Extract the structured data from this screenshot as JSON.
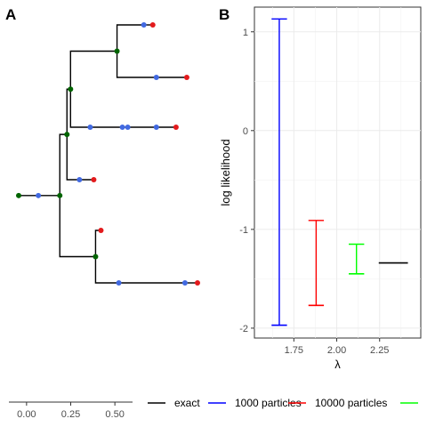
{
  "panels": {
    "a": "A",
    "b": "B"
  },
  "chart_data": [
    {
      "type": "tree",
      "panel": "A",
      "scale_ticks": [
        "0.00",
        "0.25",
        "0.50"
      ],
      "scale_range": [
        -0.1,
        0.6
      ],
      "colors": {
        "branch": "#000000",
        "internal": "#006400",
        "sampled": "#4169e1",
        "tip": "#e31a1c"
      },
      "nodes": [
        {
          "id": "root",
          "parent": null,
          "t": 0.0,
          "kind": "internal"
        },
        {
          "id": "s1",
          "parent": "root",
          "t": 0.11,
          "kind": "sampled"
        },
        {
          "id": "n1",
          "parent": "s1",
          "t": 0.23,
          "kind": "internal"
        },
        {
          "id": "n2",
          "parent": "n1",
          "t": 0.27,
          "kind": "internal"
        },
        {
          "id": "n3",
          "parent": "n2",
          "t": 0.29,
          "kind": "internal"
        },
        {
          "id": "n4",
          "parent": "n3",
          "t": 0.55,
          "kind": "internal"
        },
        {
          "id": "s2",
          "parent": "n4",
          "t": 0.7,
          "kind": "sampled"
        },
        {
          "id": "t1",
          "parent": "s2",
          "t": 0.75,
          "kind": "tip"
        },
        {
          "id": "s3",
          "parent": "n4",
          "t": 0.77,
          "kind": "sampled"
        },
        {
          "id": "t2",
          "parent": "s3",
          "t": 0.94,
          "kind": "tip"
        },
        {
          "id": "s4",
          "parent": "n3",
          "t": 0.4,
          "kind": "sampled"
        },
        {
          "id": "s5",
          "parent": "s4",
          "t": 0.58,
          "kind": "sampled"
        },
        {
          "id": "s6",
          "parent": "s5",
          "t": 0.61,
          "kind": "sampled"
        },
        {
          "id": "s7",
          "parent": "s6",
          "t": 0.77,
          "kind": "sampled"
        },
        {
          "id": "t3",
          "parent": "s7",
          "t": 0.88,
          "kind": "tip"
        },
        {
          "id": "s8",
          "parent": "n2",
          "t": 0.34,
          "kind": "sampled"
        },
        {
          "id": "t4",
          "parent": "s8",
          "t": 0.42,
          "kind": "tip"
        },
        {
          "id": "n5",
          "parent": "n1",
          "t": 0.43,
          "kind": "internal"
        },
        {
          "id": "t5",
          "parent": "n5",
          "t": 0.46,
          "kind": "tip"
        },
        {
          "id": "s9",
          "parent": "n5",
          "t": 0.56,
          "kind": "sampled"
        },
        {
          "id": "s10",
          "parent": "s9",
          "t": 0.93,
          "kind": "sampled"
        },
        {
          "id": "t6",
          "parent": "s10",
          "t": 1.0,
          "kind": "tip"
        }
      ],
      "tip_order": [
        "t1",
        "t2",
        "t3",
        "t4",
        "t5",
        "t6"
      ]
    },
    {
      "type": "errorbar",
      "panel": "B",
      "title": "",
      "xlabel": "λ",
      "ylabel": "log likelihood",
      "xlim": [
        1.52,
        2.49
      ],
      "ylim": [
        -2.1,
        1.25
      ],
      "xticks": [
        "1.75",
        "2.00",
        "2.25"
      ],
      "yticks": [
        "1",
        "0",
        "-1",
        "-2"
      ],
      "grid": true,
      "series": [
        {
          "name": "1000 particles",
          "color": "#0000ff",
          "x": 1.665,
          "low": -1.97,
          "high": 1.13,
          "cap_half": 0.045
        },
        {
          "name": "10000 particles",
          "color": "#ff0000",
          "x": 1.88,
          "low": -1.77,
          "high": -0.91,
          "cap_half": 0.045
        },
        {
          "name": "",
          "color": "#00ff00",
          "x": 2.115,
          "low": -1.45,
          "high": -1.15,
          "cap_half": 0.045
        },
        {
          "name": "exact",
          "color": "#000000",
          "x": 2.33,
          "low": -1.34,
          "high": -1.34,
          "cap_half": 0.085
        }
      ]
    }
  ],
  "legend": {
    "items": [
      {
        "label": "exact",
        "color": "#000000"
      },
      {
        "label": "1000 particles",
        "color": "#0000ff"
      },
      {
        "label": "10000 particles",
        "color": "#ff0000"
      },
      {
        "label": "",
        "color": "#00ff00"
      }
    ]
  }
}
